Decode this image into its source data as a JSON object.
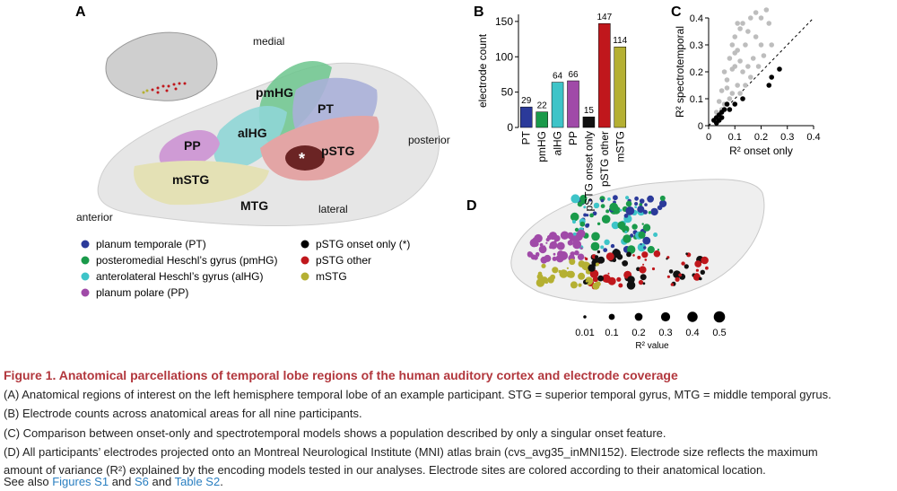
{
  "panel_labels": [
    "A",
    "B",
    "C",
    "D"
  ],
  "panel_a": {
    "directions": {
      "medial": "medial",
      "posterior": "posterior",
      "anterior": "anterior",
      "lateral": "lateral"
    },
    "regions": {
      "pmHG": "pmHG",
      "PT": "PT",
      "alHG": "alHG",
      "PP": "PP",
      "pSTG": "pSTG",
      "mSTG": "mSTG",
      "MTG": "MTG",
      "onset": "*"
    },
    "legend": [
      {
        "label": "planum temporale (PT)",
        "color": "#2b3a9a"
      },
      {
        "label": "posteromedial Heschl’s gyrus (pmHG)",
        "color": "#1a9a4a"
      },
      {
        "label": "anterolateral Heschl’s gyrus (alHG)",
        "color": "#3ec4c8"
      },
      {
        "label": "planum polare (PP)",
        "color": "#a04aa8"
      },
      {
        "label": "pSTG onset only (*)",
        "color": "#000000"
      },
      {
        "label": "pSTG other",
        "color": "#c0171c"
      },
      {
        "label": "mSTG",
        "color": "#b5b032"
      }
    ]
  },
  "chart_data": [
    {
      "type": "bar",
      "ylabel": "electrode count",
      "categories": [
        "PT",
        "pmHG",
        "alHG",
        "PP",
        "pSTG onset only",
        "pSTG other",
        "mSTG"
      ],
      "values": [
        29,
        22,
        64,
        66,
        15,
        147,
        114
      ],
      "colors": [
        "#2b3a9a",
        "#1a9a4a",
        "#3ec4c8",
        "#a04aa8",
        "#111111",
        "#c0171c",
        "#b5b032"
      ],
      "ylim": [
        0,
        160
      ],
      "yticks": [
        0,
        50,
        100,
        150
      ]
    },
    {
      "type": "scatter",
      "xlabel": "R² onset only",
      "ylabel": "R² spectrotemporal",
      "xlim": [
        0,
        0.4
      ],
      "ylim": [
        0,
        0.4
      ],
      "xticks": [
        0,
        0.1,
        0.2,
        0.3,
        0.4
      ],
      "yticks": [
        0,
        0.1,
        0.2,
        0.3,
        0.4
      ],
      "identity_line": true,
      "series": [
        {
          "color": "#bdbdbd",
          "x": [
            0.05,
            0.06,
            0.07,
            0.08,
            0.09,
            0.1,
            0.1,
            0.11,
            0.12,
            0.13,
            0.14,
            0.15,
            0.16,
            0.18,
            0.2,
            0.22,
            0.23,
            0.2,
            0.17,
            0.15,
            0.13,
            0.11,
            0.09,
            0.08,
            0.12,
            0.14,
            0.16,
            0.19,
            0.21,
            0.24,
            0.06,
            0.07,
            0.1,
            0.12,
            0.03,
            0.04,
            0.05,
            0.18,
            0.11,
            0.09
          ],
          "values": [
            0.13,
            0.2,
            0.17,
            0.25,
            0.3,
            0.33,
            0.22,
            0.28,
            0.36,
            0.38,
            0.3,
            0.35,
            0.4,
            0.42,
            0.4,
            0.43,
            0.38,
            0.3,
            0.25,
            0.22,
            0.2,
            0.15,
            0.12,
            0.1,
            0.12,
            0.15,
            0.18,
            0.22,
            0.26,
            0.3,
            0.08,
            0.14,
            0.27,
            0.24,
            0.05,
            0.09,
            0.06,
            0.33,
            0.38,
            0.21
          ]
        },
        {
          "color": "#000000",
          "x": [
            0.02,
            0.03,
            0.04,
            0.05,
            0.06,
            0.03,
            0.07,
            0.08,
            0.1,
            0.13,
            0.23,
            0.24,
            0.27,
            0.05,
            0.04
          ],
          "values": [
            0.02,
            0.03,
            0.04,
            0.05,
            0.06,
            0.01,
            0.08,
            0.06,
            0.08,
            0.1,
            0.15,
            0.18,
            0.21,
            0.03,
            0.02
          ]
        }
      ]
    }
  ],
  "panel_d": {
    "size_legend": {
      "values": [
        0.01,
        0.1,
        0.2,
        0.3,
        0.4,
        0.5
      ],
      "title": "R² value"
    }
  },
  "caption": {
    "title": "Figure 1.  Anatomical parcellations of temporal lobe regions of the human auditory cortex and electrode coverage",
    "lines": [
      "(A) Anatomical regions of interest on the left hemisphere temporal lobe of an example participant. STG = superior temporal gyrus, MTG = middle temporal gyrus.",
      "(B) Electrode counts across anatomical areas for all nine participants.",
      "(C) Comparison between onset-only and spectrotemporal models shows a population described by only a singular onset feature.",
      "(D) All participants’ electrodes projected onto an Montreal Neurological Institute (MNI) atlas brain (cvs_avg35_inMNI152). Electrode size reflects the maximum",
      "amount of variance (R²) explained by the encoding models tested in our analyses. Electrode sites are colored according to their anatomical location."
    ],
    "see_also": [
      "See also ",
      "Figures S1",
      " and ",
      "S6",
      " and ",
      "Table S2",
      "."
    ]
  }
}
